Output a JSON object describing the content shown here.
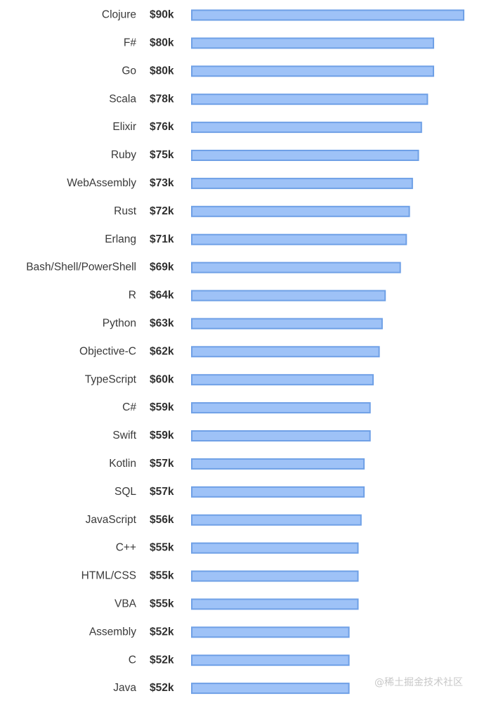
{
  "chart_data": {
    "type": "bar",
    "orientation": "horizontal",
    "categories": [
      "Clojure",
      "F#",
      "Go",
      "Scala",
      "Elixir",
      "Ruby",
      "WebAssembly",
      "Rust",
      "Erlang",
      "Bash/Shell/PowerShell",
      "R",
      "Python",
      "Objective-C",
      "TypeScript",
      "C#",
      "Swift",
      "Kotlin",
      "SQL",
      "JavaScript",
      "C++",
      "HTML/CSS",
      "VBA",
      "Assembly",
      "C",
      "Java"
    ],
    "values": [
      90,
      80,
      80,
      78,
      76,
      75,
      73,
      72,
      71,
      69,
      64,
      63,
      62,
      60,
      59,
      59,
      57,
      57,
      56,
      55,
      55,
      55,
      52,
      52,
      52
    ],
    "value_labels": [
      "$90k",
      "$80k",
      "$80k",
      "$78k",
      "$76k",
      "$75k",
      "$73k",
      "$72k",
      "$71k",
      "$69k",
      "$64k",
      "$63k",
      "$62k",
      "$60k",
      "$59k",
      "$59k",
      "$57k",
      "$57k",
      "$56k",
      "$55k",
      "$55k",
      "$55k",
      "$52k",
      "$52k",
      "$52k"
    ],
    "title": "",
    "xlabel": "",
    "ylabel": "",
    "xlim": [
      0,
      90
    ],
    "grid": false,
    "bar_fill": "#9ec2f7",
    "bar_stroke": "#6fa0e6"
  },
  "watermark": {
    "text": "@稀土掘金技术社区"
  }
}
